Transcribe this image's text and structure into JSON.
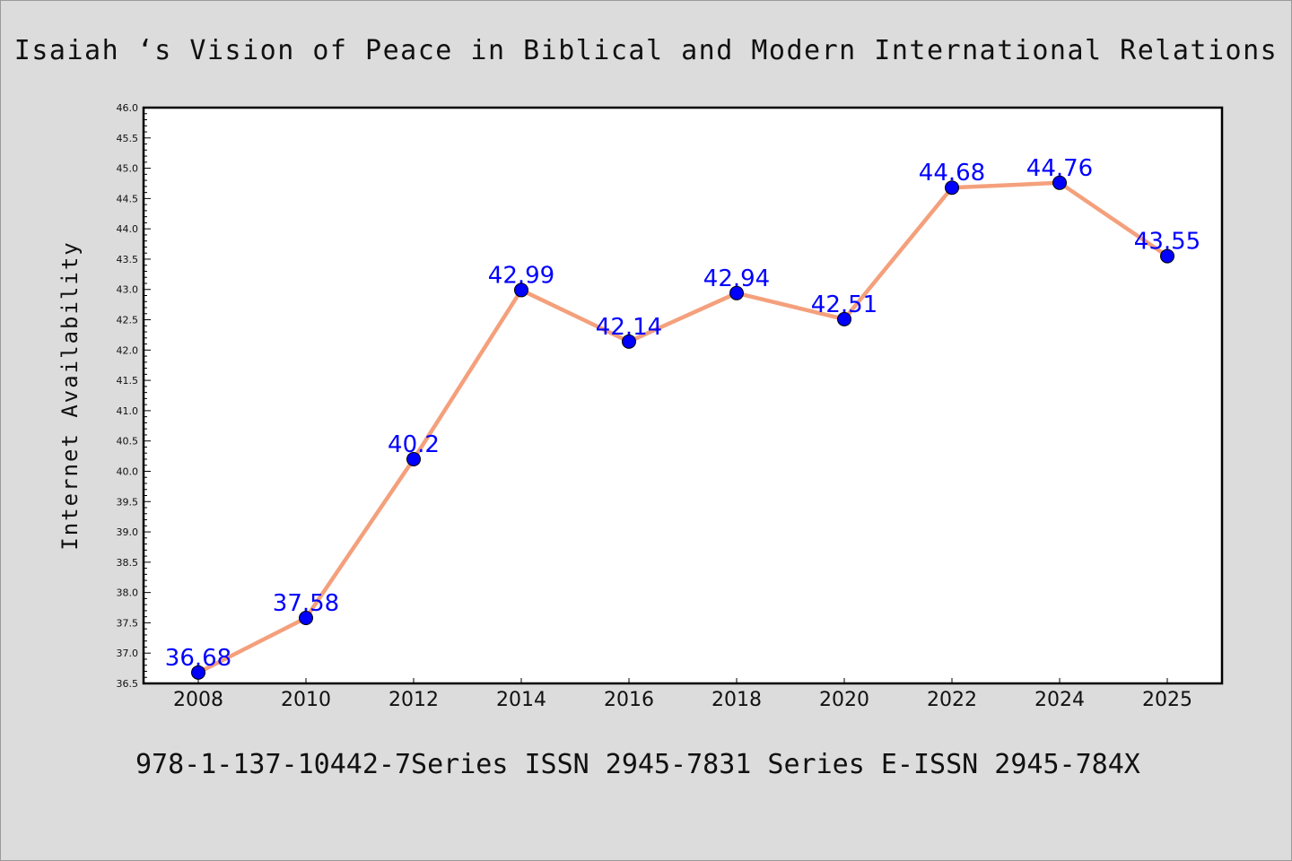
{
  "chart_data": {
    "type": "line",
    "title": "Isaiah ‘s Vision of Peace in Biblical and Modern International Relations",
    "xlabel": "",
    "ylabel": "Internet Availability",
    "x": [
      "2008",
      "2010",
      "2012",
      "2014",
      "2016",
      "2018",
      "2020",
      "2022",
      "2024",
      "2025"
    ],
    "series": [
      {
        "values": [
          36.68,
          37.58,
          40.2,
          42.99,
          42.14,
          42.94,
          42.51,
          44.68,
          44.76,
          43.55
        ],
        "labels": [
          "36.68",
          "37.58",
          "40.2",
          "42.99",
          "42.14",
          "42.94",
          "42.51",
          "44.68",
          "44.76",
          "43.55"
        ]
      }
    ],
    "ylim": [
      36.5,
      46.0
    ],
    "yticks": [
      "36.5",
      "37.0",
      "37.5",
      "38.0",
      "38.5",
      "39.0",
      "39.5",
      "40.0",
      "40.5",
      "41.0",
      "41.5",
      "42.0",
      "42.5",
      "43.0",
      "43.5",
      "44.0",
      "44.5",
      "45.0",
      "45.5",
      "46.0"
    ],
    "grid": false,
    "colors": {
      "line": "#f4a07c",
      "marker": "#0000ff",
      "data_label": "#0000ff",
      "background": "#dcdcdc",
      "plot_background": "#ffffff"
    }
  },
  "footer": "978-1-137-10442-7Series ISSN 2945-7831 Series E-ISSN 2945-784X"
}
